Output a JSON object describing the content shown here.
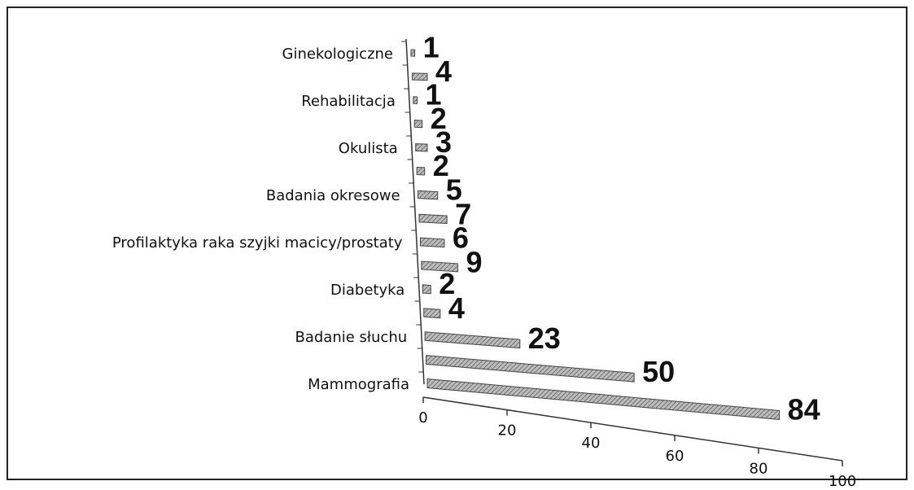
{
  "chart_data": {
    "type": "bar",
    "orientation": "horizontal",
    "categories": [
      "Ginekologiczne",
      null,
      "Rehabilitacja",
      null,
      "Okulista",
      null,
      "Badania okresowe",
      null,
      "Profilaktyka raka szyjki macicy/prostaty",
      null,
      "Diabetyka",
      null,
      "Badanie słuchu",
      null,
      "Mammografia"
    ],
    "values": [
      1,
      4,
      1,
      2,
      3,
      2,
      5,
      7,
      6,
      9,
      2,
      4,
      23,
      50,
      84
    ],
    "color": "#9a9a9a",
    "xlim": [
      0,
      100
    ],
    "xticks": [
      0,
      20,
      40,
      60,
      80,
      100
    ]
  }
}
